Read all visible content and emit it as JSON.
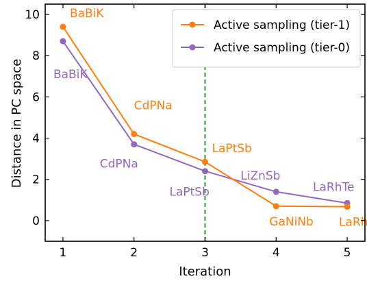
{
  "chart_data": {
    "type": "line",
    "xlabel": "Iteration",
    "ylabel": "Distance in PC space",
    "xlim": [
      0.75,
      5.25
    ],
    "ylim": [
      -1.0,
      10.5
    ],
    "xticks": [
      1,
      2,
      3,
      4,
      5
    ],
    "yticks": [
      0,
      2,
      4,
      6,
      8,
      10
    ],
    "grid": false,
    "legend_position": "top-right",
    "vline": {
      "x": 3,
      "color": "#2ca02c",
      "style": "dashed"
    },
    "series": [
      {
        "name": "Active sampling (tier-1)",
        "color": "#ff7f0e",
        "x": [
          1,
          2,
          3,
          4,
          5
        ],
        "y": [
          9.4,
          4.2,
          2.85,
          0.7,
          0.68
        ],
        "labels": [
          "BaBiK",
          "CdPNa",
          "LaPtSb",
          "GaNiNb",
          "LaRhTe"
        ]
      },
      {
        "name": "Active sampling (tier-0)",
        "color": "#9467bd",
        "x": [
          1,
          2,
          3,
          4,
          5
        ],
        "y": [
          8.7,
          3.7,
          2.4,
          1.4,
          0.85
        ],
        "labels": [
          "BaBiK",
          "CdPNa",
          "LaPtSb",
          "LiZnSb",
          "LaRhTe"
        ]
      }
    ]
  }
}
